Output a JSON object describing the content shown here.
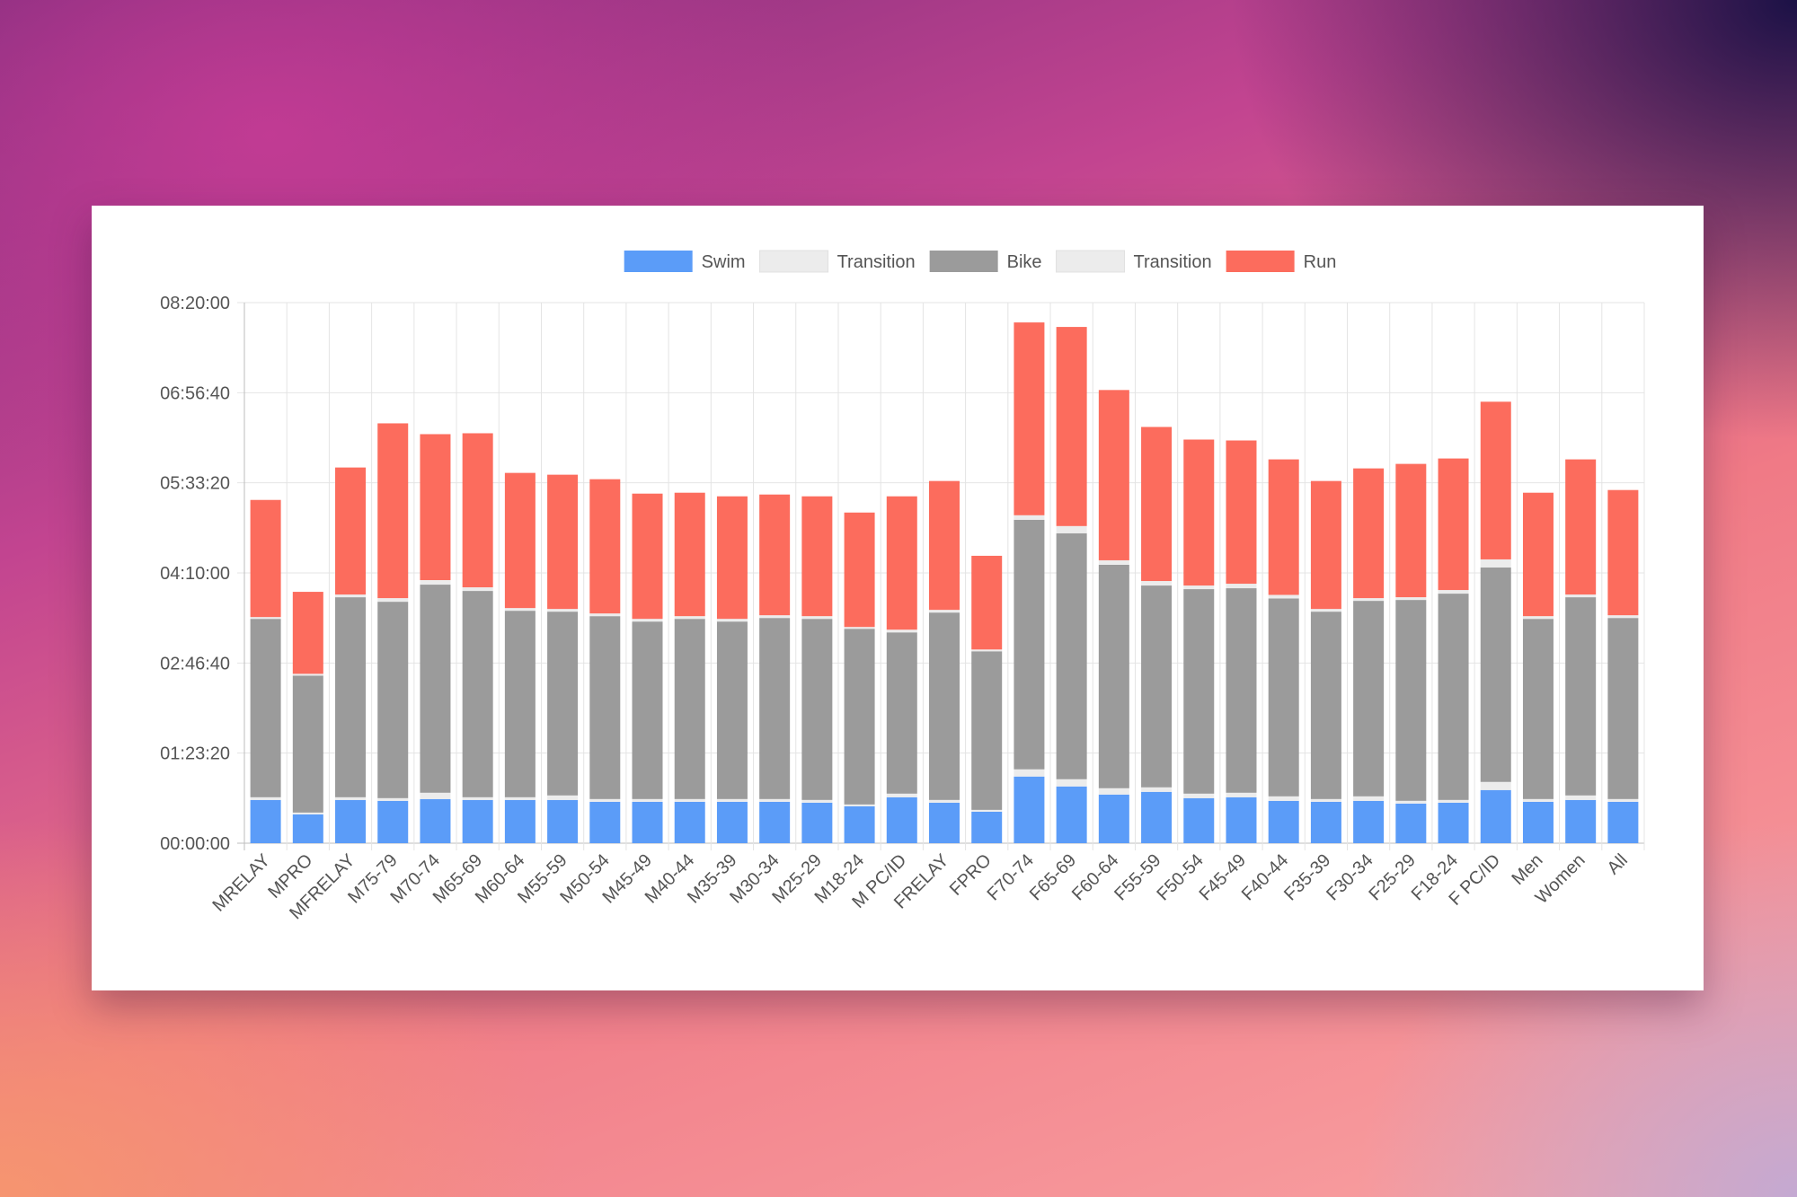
{
  "chart_data": {
    "type": "bar",
    "stacked": true,
    "title": "",
    "xlabel": "",
    "ylabel": "",
    "legend_position": "top",
    "ylim_seconds": [
      0,
      30000
    ],
    "y_ticks": [
      "00:00:00",
      "01:23:20",
      "02:46:40",
      "04:10:00",
      "05:33:20",
      "06:56:40",
      "08:20:00"
    ],
    "categories": [
      "MRELAY",
      "MPRO",
      "MFRELAY",
      "M75-79",
      "M70-74",
      "M65-69",
      "M60-64",
      "M55-59",
      "M50-54",
      "M45-49",
      "M40-44",
      "M35-39",
      "M30-34",
      "M25-29",
      "M18-24",
      "M PC/ID",
      "FRELAY",
      "FPRO",
      "F70-74",
      "F65-69",
      "F60-64",
      "F55-59",
      "F50-54",
      "F45-49",
      "F40-44",
      "F35-39",
      "F30-34",
      "F25-29",
      "F18-24",
      "F PC/ID",
      "Men",
      "Women",
      "All"
    ],
    "series": [
      {
        "name": "Swim",
        "color": "#5b9cf8",
        "values": [
          2400,
          1600,
          2400,
          2350,
          2450,
          2400,
          2400,
          2400,
          2300,
          2300,
          2300,
          2300,
          2300,
          2250,
          2050,
          2550,
          2250,
          1750,
          3700,
          3150,
          2700,
          2850,
          2500,
          2550,
          2350,
          2300,
          2350,
          2200,
          2250,
          2950,
          2300,
          2400,
          2300
        ]
      },
      {
        "name": "Transition",
        "color": "#ececec",
        "values": [
          150,
          100,
          150,
          150,
          350,
          150,
          150,
          250,
          150,
          150,
          150,
          150,
          150,
          150,
          100,
          200,
          150,
          100,
          400,
          400,
          350,
          250,
          250,
          250,
          250,
          150,
          250,
          150,
          150,
          450,
          150,
          250,
          150
        ]
      },
      {
        "name": "Bike",
        "color": "#9b9b9b",
        "values": [
          9900,
          7600,
          11100,
          10900,
          11550,
          11450,
          10350,
          10200,
          10150,
          9850,
          10000,
          9850,
          10050,
          10050,
          9750,
          8950,
          10400,
          8800,
          13850,
          13650,
          12400,
          11200,
          11350,
          11350,
          10980,
          10400,
          10850,
          11150,
          11450,
          11900,
          10000,
          11000,
          10050
        ]
      },
      {
        "name": "Transition",
        "color": "#ececec",
        "values": [
          100,
          100,
          150,
          200,
          250,
          200,
          150,
          150,
          150,
          150,
          150,
          150,
          150,
          150,
          100,
          150,
          150,
          100,
          250,
          400,
          250,
          250,
          200,
          250,
          200,
          150,
          150,
          150,
          200,
          450,
          150,
          150,
          150
        ]
      },
      {
        "name": "Run",
        "color": "#fc6c5d",
        "values": [
          6500,
          4550,
          7050,
          9700,
          8100,
          8550,
          7500,
          7450,
          7450,
          6950,
          6850,
          6800,
          6700,
          6650,
          6350,
          7400,
          7150,
          5200,
          10700,
          11050,
          9450,
          8550,
          8100,
          7950,
          7520,
          7100,
          7200,
          7400,
          7300,
          8750,
          6850,
          7500,
          6950
        ]
      }
    ]
  }
}
